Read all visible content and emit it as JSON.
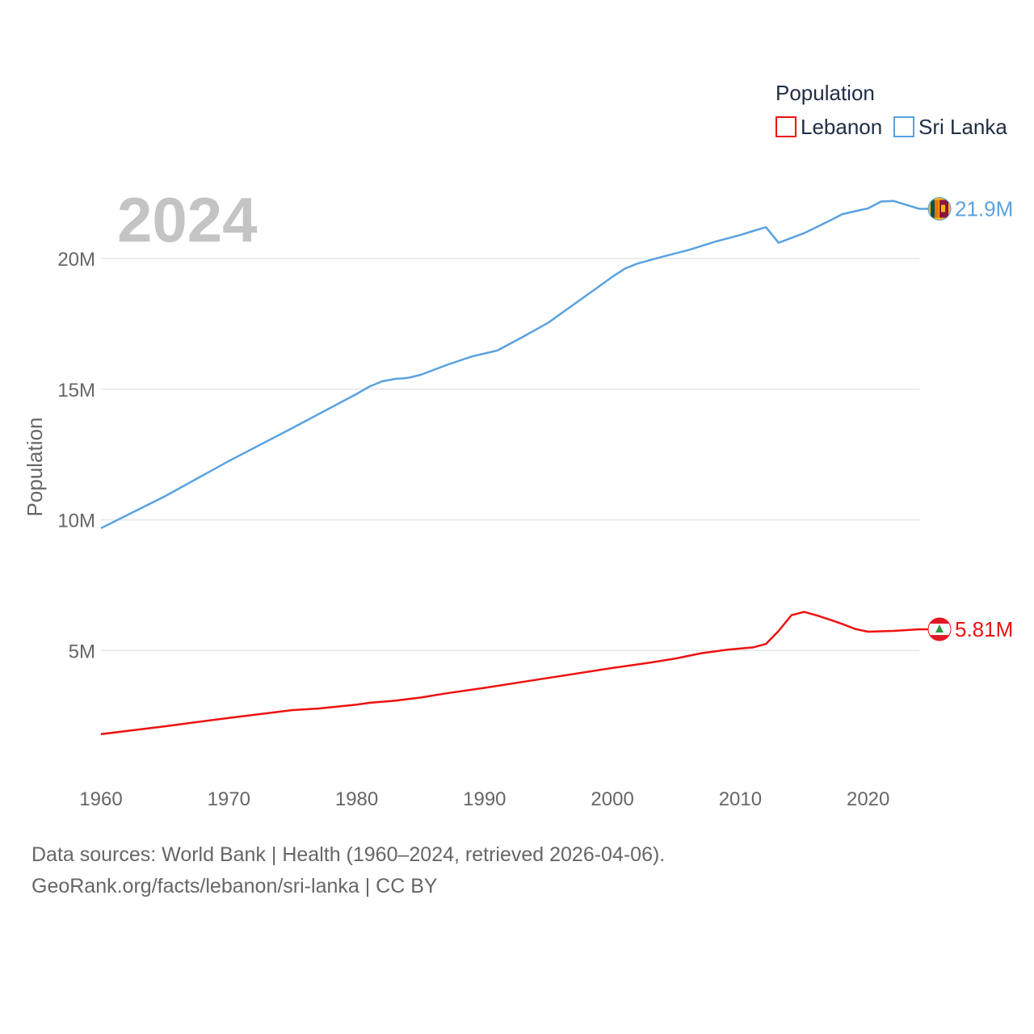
{
  "chart_data": {
    "type": "line",
    "title": "Population",
    "ylabel": "Population",
    "xlabel": "",
    "year_display": "2024",
    "xlim": [
      1960,
      2024
    ],
    "ylim": [
      0,
      25000000
    ],
    "x_ticks": [
      1960,
      1970,
      1980,
      1990,
      2000,
      2010,
      2020
    ],
    "y_ticks": [
      {
        "value": 5000000,
        "label": "5M"
      },
      {
        "value": 10000000,
        "label": "10M"
      },
      {
        "value": 15000000,
        "label": "15M"
      },
      {
        "value": 20000000,
        "label": "20M"
      }
    ],
    "legend": {
      "title": "Population",
      "position": "top-right"
    },
    "series": [
      {
        "name": "Lebanon",
        "color": "#ee1111",
        "end_label": "5.81M",
        "flag_icon": "lebanon-flag-icon",
        "points": [
          [
            1960,
            1800000
          ],
          [
            1965,
            2100000
          ],
          [
            1970,
            2420000
          ],
          [
            1975,
            2720000
          ],
          [
            1977,
            2780000
          ],
          [
            1980,
            2930000
          ],
          [
            1981,
            3000000
          ],
          [
            1983,
            3080000
          ],
          [
            1985,
            3200000
          ],
          [
            1987,
            3360000
          ],
          [
            1990,
            3570000
          ],
          [
            1995,
            3950000
          ],
          [
            2000,
            4330000
          ],
          [
            2003,
            4540000
          ],
          [
            2005,
            4700000
          ],
          [
            2007,
            4900000
          ],
          [
            2009,
            5030000
          ],
          [
            2011,
            5120000
          ],
          [
            2012,
            5250000
          ],
          [
            2013,
            5750000
          ],
          [
            2014,
            6350000
          ],
          [
            2015,
            6480000
          ],
          [
            2016,
            6340000
          ],
          [
            2017,
            6180000
          ],
          [
            2018,
            6010000
          ],
          [
            2019,
            5820000
          ],
          [
            2020,
            5720000
          ],
          [
            2022,
            5750000
          ],
          [
            2024,
            5810000
          ]
        ]
      },
      {
        "name": "Sri Lanka",
        "color": "#5aa2e0",
        "end_label": "21.9M",
        "flag_icon": "sri-lanka-flag-icon",
        "points": [
          [
            1960,
            9680000
          ],
          [
            1965,
            10900000
          ],
          [
            1970,
            12250000
          ],
          [
            1975,
            13520000
          ],
          [
            1980,
            14820000
          ],
          [
            1981,
            15100000
          ],
          [
            1982,
            15300000
          ],
          [
            1983,
            15390000
          ],
          [
            1984,
            15430000
          ],
          [
            1985,
            15550000
          ],
          [
            1987,
            15920000
          ],
          [
            1989,
            16250000
          ],
          [
            1991,
            16480000
          ],
          [
            1993,
            17000000
          ],
          [
            1995,
            17550000
          ],
          [
            1997,
            18250000
          ],
          [
            1999,
            18950000
          ],
          [
            2000,
            19300000
          ],
          [
            2001,
            19620000
          ],
          [
            2002,
            19810000
          ],
          [
            2004,
            20080000
          ],
          [
            2006,
            20330000
          ],
          [
            2008,
            20640000
          ],
          [
            2010,
            20900000
          ],
          [
            2011,
            21050000
          ],
          [
            2012,
            21200000
          ],
          [
            2013,
            20600000
          ],
          [
            2015,
            20970000
          ],
          [
            2017,
            21450000
          ],
          [
            2018,
            21700000
          ],
          [
            2020,
            21920000
          ],
          [
            2021,
            22180000
          ],
          [
            2022,
            22200000
          ],
          [
            2023,
            22050000
          ],
          [
            2024,
            21900000
          ]
        ]
      }
    ]
  },
  "footer": {
    "line1": "Data sources: World Bank | Health (1960–2024, retrieved 2026-04-06).",
    "line2": "GeoRank.org/facts/lebanon/sri-lanka | CC BY"
  }
}
